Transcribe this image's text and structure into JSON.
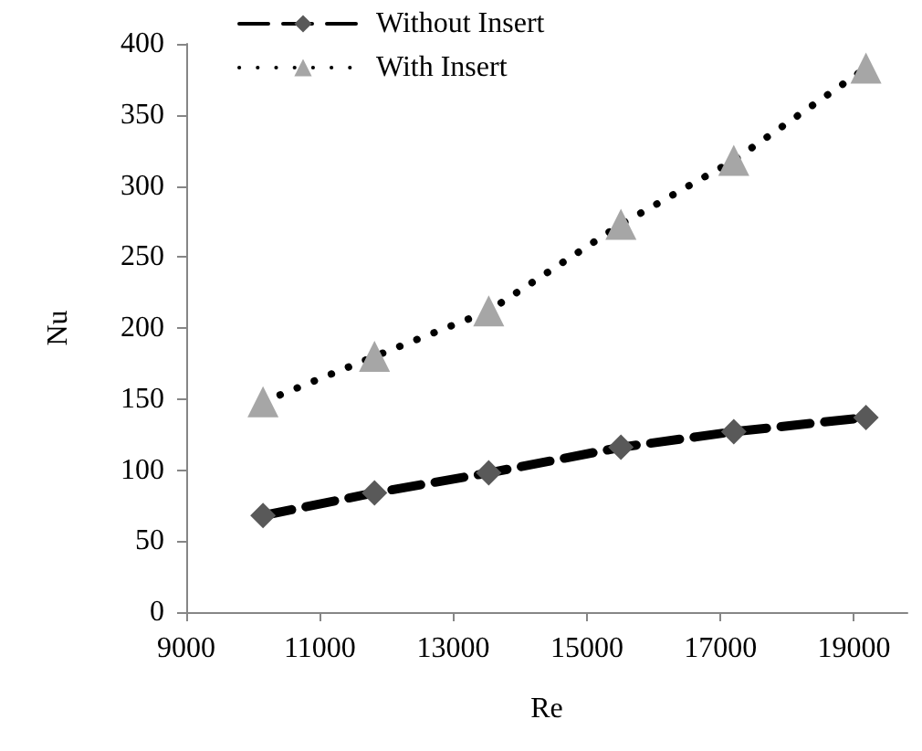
{
  "chart_data": {
    "type": "line",
    "xlabel": "Re",
    "ylabel": "Nu",
    "x": [
      10150,
      11820,
      13530,
      15510,
      17200,
      19180
    ],
    "series": [
      {
        "name": "Without Insert",
        "color": "#595959",
        "values": [
          68,
          84,
          98,
          116,
          127,
          137
        ],
        "marker": "diamond",
        "line_style": "dashed"
      },
      {
        "name": "With Insert",
        "color": "#a6a6a6",
        "values": [
          148,
          180,
          212,
          273,
          318,
          383
        ],
        "marker": "triangle",
        "line_style": "dotted"
      }
    ],
    "xlim": [
      9000,
      19800
    ],
    "xticks": [
      9000,
      11000,
      13000,
      15000,
      17000,
      19000
    ],
    "ylim": [
      0,
      400
    ],
    "yticks": [
      0,
      50,
      100,
      150,
      200,
      250,
      300,
      350,
      400
    ],
    "grid": false,
    "legend": "top"
  }
}
